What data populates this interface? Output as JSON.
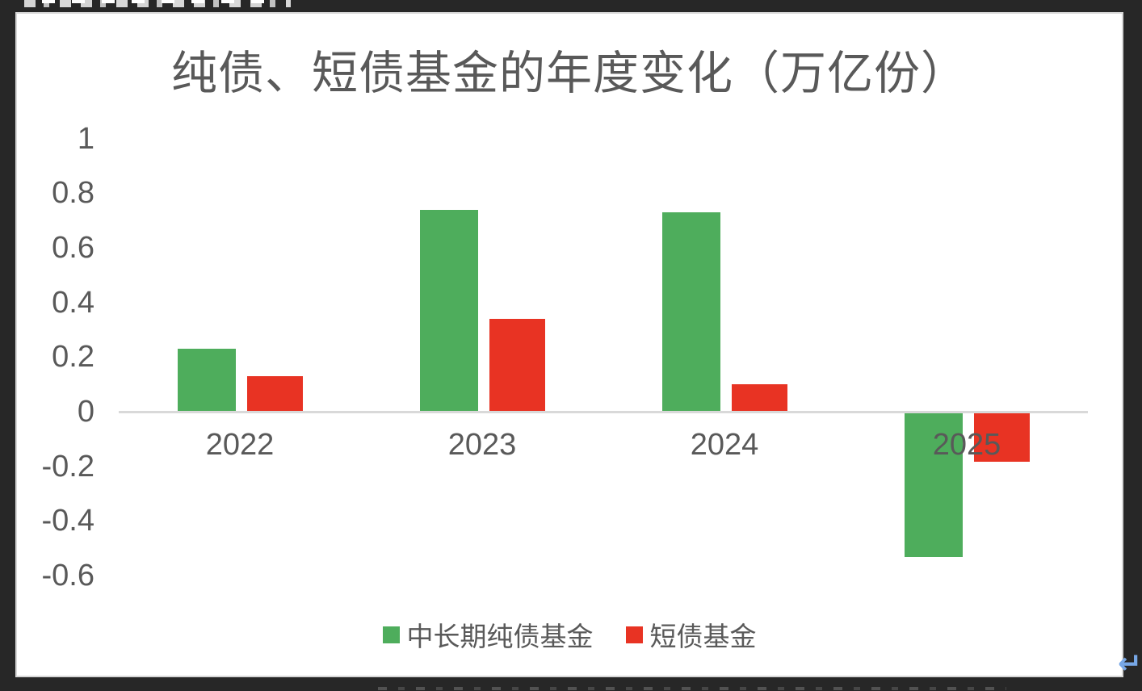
{
  "window": {
    "return_symbol": "↵"
  },
  "chart_data": {
    "type": "bar",
    "title": "纯债、短债基金的年度变化（万亿份）",
    "categories": [
      "2022",
      "2023",
      "2024",
      "2025"
    ],
    "series": [
      {
        "name": "中长期纯债基金",
        "color": "#4ead5c",
        "values": [
          0.23,
          0.74,
          0.73,
          -0.53
        ]
      },
      {
        "name": "短债基金",
        "color": "#e83323",
        "values": [
          0.13,
          0.34,
          0.1,
          -0.18
        ]
      }
    ],
    "y_ticks": [
      "1",
      "0.8",
      "0.6",
      "0.4",
      "0.2",
      "0",
      "-0.2",
      "-0.4",
      "-0.6"
    ],
    "ylim": [
      -0.7,
      1.05
    ],
    "grid": false,
    "legend_position": "bottom",
    "title_color": "#595959",
    "axis_text_color": "#595959",
    "axis_line_color": "#d9d9d9",
    "plot_background": "#ffffff",
    "page_background": "#272727"
  }
}
